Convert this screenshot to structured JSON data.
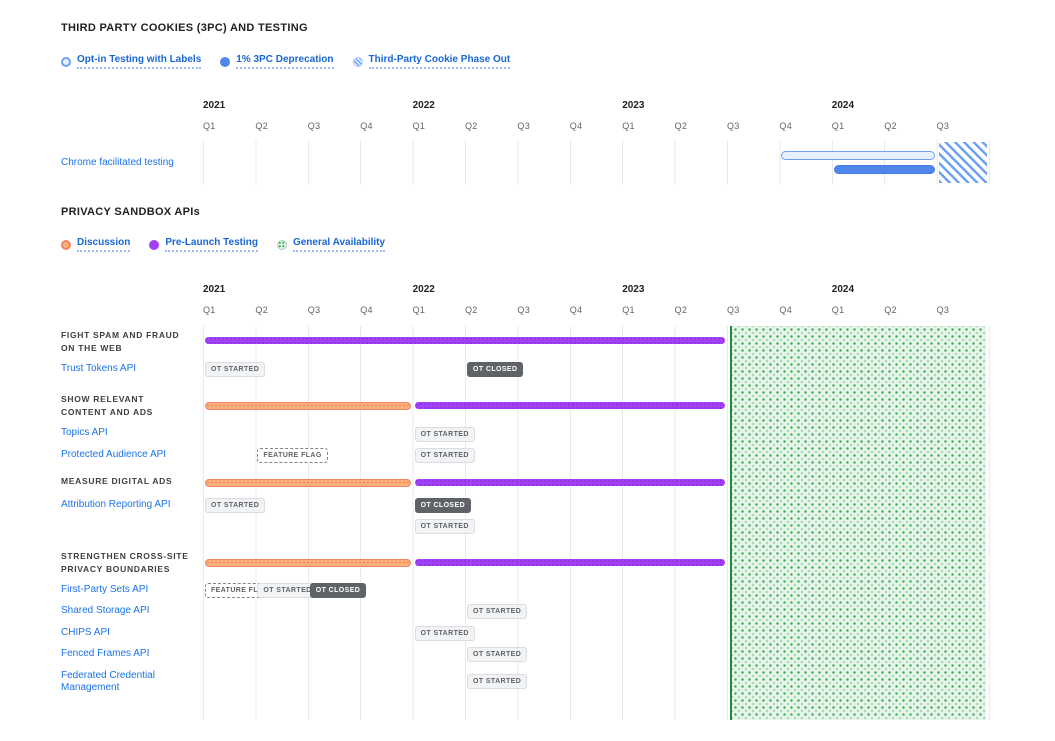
{
  "colors": {
    "link_blue": "#1A73E8",
    "legend_blue": "#1967D2",
    "purple_bar": "#A142F4",
    "orange_fill": "#FCAE7C",
    "orange_border": "#EE8666",
    "blue_solid": "#5086EC",
    "blue_light_fill": "#E8F0FE",
    "blue_outline": "#6FA1F2",
    "green_dot": "#34A853",
    "green_bg": "#E7F4EA",
    "green_border": "#1E8E3E",
    "badge_dark_bg": "#5F6368",
    "badge_light_bg": "#F1F3F4",
    "text_dark": "#202124",
    "text_gray": "#5F6368",
    "gridline": "#E8EAED"
  },
  "chart_data": [
    {
      "type": "gantt",
      "title": "THIRD PARTY COOKIES (3PC) AND TESTING",
      "legend": [
        {
          "label": "Opt-in Testing with Labels",
          "style": "outlined-blue"
        },
        {
          "label": "1% 3PC Deprecation",
          "style": "solid-blue"
        },
        {
          "label": "Third-Party Cookie Phase Out",
          "style": "hatched-blue"
        }
      ],
      "axis": {
        "years": [
          "2021",
          "2022",
          "2023",
          "2024"
        ],
        "quarters": [
          "Q1",
          "Q2",
          "Q3",
          "Q4",
          "Q1",
          "Q2",
          "Q3",
          "Q4",
          "Q1",
          "Q2",
          "Q3",
          "Q4",
          "Q1",
          "Q2",
          "Q3"
        ],
        "range": [
          "2021 Q1",
          "2024 Q3"
        ]
      },
      "rows": [
        {
          "label": "Chrome facilitated testing",
          "bars": [
            {
              "phase": "Opt-in Testing with Labels",
              "start": "2023 Q4",
              "end": "2024 Q2"
            },
            {
              "phase": "1% 3PC Deprecation",
              "start": "2024 Q1",
              "end": "2024 Q2"
            },
            {
              "phase": "Third-Party Cookie Phase Out",
              "start": "2024 Q3",
              "end": "2024 Q3"
            }
          ]
        }
      ]
    },
    {
      "type": "gantt",
      "title": "PRIVACY SANDBOX APIs",
      "legend": [
        {
          "label": "Discussion",
          "style": "outlined-orange"
        },
        {
          "label": "Pre-Launch Testing",
          "style": "solid-purple"
        },
        {
          "label": "General Availability",
          "style": "dotted-green"
        }
      ],
      "axis": {
        "years": [
          "2021",
          "2022",
          "2023",
          "2024"
        ],
        "quarters": [
          "Q1",
          "Q2",
          "Q3",
          "Q4",
          "Q1",
          "Q2",
          "Q3",
          "Q4",
          "Q1",
          "Q2",
          "Q3",
          "Q4",
          "Q1",
          "Q2",
          "Q3"
        ],
        "range": [
          "2021 Q1",
          "2024 Q3"
        ]
      },
      "region": {
        "phase": "General Availability",
        "start": "2023 Q3",
        "end": "2024 Q3"
      },
      "groups": [
        {
          "label_lines": [
            "FIGHT SPAM AND FRAUD",
            "ON THE WEB"
          ],
          "bars": [
            {
              "phase": "Pre-Launch Testing",
              "start": "2021 Q1",
              "end": "2023 Q2"
            }
          ],
          "apis": [
            {
              "label": "Trust Tokens API",
              "badges": [
                {
                  "text": "OT STARTED",
                  "variant": "light",
                  "at": "2021 Q1"
                },
                {
                  "text": "OT CLOSED",
                  "variant": "dark",
                  "at": "2022 Q2"
                }
              ]
            }
          ]
        },
        {
          "label_lines": [
            "SHOW RELEVANT",
            "CONTENT AND ADS"
          ],
          "bars": [
            {
              "phase": "Discussion",
              "start": "2021 Q1",
              "end": "2021 Q4"
            },
            {
              "phase": "Pre-Launch Testing",
              "start": "2022 Q1",
              "end": "2023 Q2"
            }
          ],
          "apis": [
            {
              "label": "Topics API",
              "badges": [
                {
                  "text": "OT STARTED",
                  "variant": "light",
                  "at": "2022 Q1"
                }
              ]
            },
            {
              "label": "Protected Audience API",
              "badges": [
                {
                  "text": "FEATURE FLAG",
                  "variant": "dashed",
                  "at": "2021 Q2"
                },
                {
                  "text": "OT STARTED",
                  "variant": "light",
                  "at": "2022 Q1"
                }
              ]
            }
          ]
        },
        {
          "label_lines": [
            "MEASURE DIGITAL ADS"
          ],
          "bars": [
            {
              "phase": "Discussion",
              "start": "2021 Q1",
              "end": "2021 Q4"
            },
            {
              "phase": "Pre-Launch Testing",
              "start": "2022 Q1",
              "end": "2023 Q2"
            }
          ],
          "apis": [
            {
              "label": "Attribution Reporting API",
              "badges": [
                {
                  "text": "OT STARTED",
                  "variant": "light",
                  "at": "2021 Q1"
                },
                {
                  "text": "OT CLOSED",
                  "variant": "dark",
                  "at": "2022 Q1"
                },
                {
                  "text": "OT STARTED",
                  "variant": "light",
                  "at": "2022 Q1",
                  "row": 2
                }
              ]
            }
          ]
        },
        {
          "label_lines": [
            "STRENGTHEN CROSS-SITE",
            "PRIVACY BOUNDARIES"
          ],
          "bars": [
            {
              "phase": "Discussion",
              "start": "2021 Q1",
              "end": "2021 Q4"
            },
            {
              "phase": "Pre-Launch Testing",
              "start": "2022 Q1",
              "end": "2023 Q2"
            }
          ],
          "apis": [
            {
              "label": "First-Party Sets API",
              "badges": [
                {
                  "text": "FEATURE FLAG",
                  "variant": "dashed",
                  "at": "2021 Q1"
                },
                {
                  "text": "OT STARTED",
                  "variant": "light",
                  "at": "2021 Q2"
                },
                {
                  "text": "OT CLOSED",
                  "variant": "dark",
                  "at": "2021 Q3"
                }
              ]
            },
            {
              "label": "Shared Storage API",
              "badges": [
                {
                  "text": "OT STARTED",
                  "variant": "light",
                  "at": "2022 Q2"
                }
              ]
            },
            {
              "label": "CHIPS API",
              "badges": [
                {
                  "text": "OT STARTED",
                  "variant": "light",
                  "at": "2022 Q1"
                }
              ]
            },
            {
              "label": "Fenced Frames API",
              "badges": [
                {
                  "text": "OT STARTED",
                  "variant": "light",
                  "at": "2022 Q2"
                }
              ]
            },
            {
              "label": "Federated Credential Management",
              "badges": [
                {
                  "text": "OT STARTED",
                  "variant": "light",
                  "at": "2022 Q2"
                }
              ]
            }
          ]
        }
      ]
    }
  ]
}
